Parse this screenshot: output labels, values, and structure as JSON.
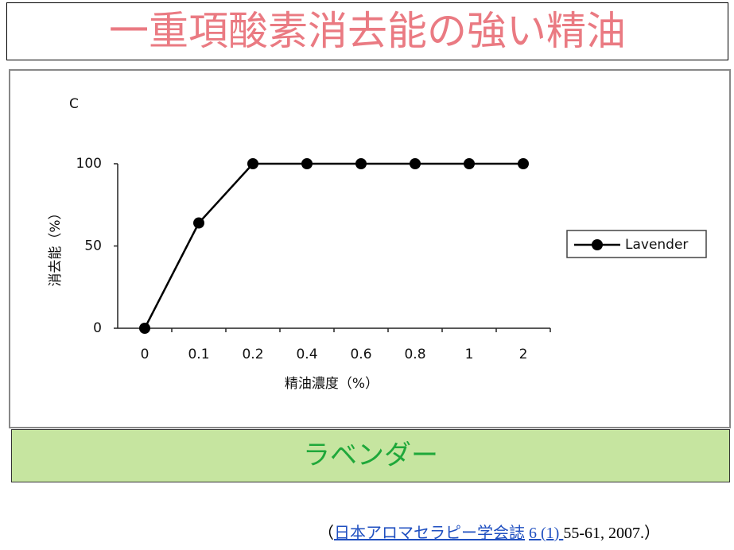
{
  "header": {
    "title": "一重項酸素消去能の強い精油"
  },
  "chart_data": {
    "type": "line",
    "panel_label": "C",
    "x_label": "精油濃度（%）",
    "y_label": "消去能（%）",
    "categories": [
      "0",
      "0.1",
      "0.2",
      "0.4",
      "0.6",
      "0.8",
      "1",
      "2"
    ],
    "series": [
      {
        "name": "Lavender",
        "color": "#000000",
        "values": [
          0,
          64,
          100,
          100,
          100,
          100,
          100,
          100
        ]
      }
    ],
    "ylim": [
      0,
      100
    ],
    "yticks": [
      0,
      50,
      100
    ],
    "grid": false,
    "legend": "right"
  },
  "caption": "ラベンダー",
  "citation": {
    "open": "（",
    "journal": "日本アロマセラピー学会誌",
    "volume": "6 (1) ",
    "rest": "55-61, 2007.）"
  }
}
